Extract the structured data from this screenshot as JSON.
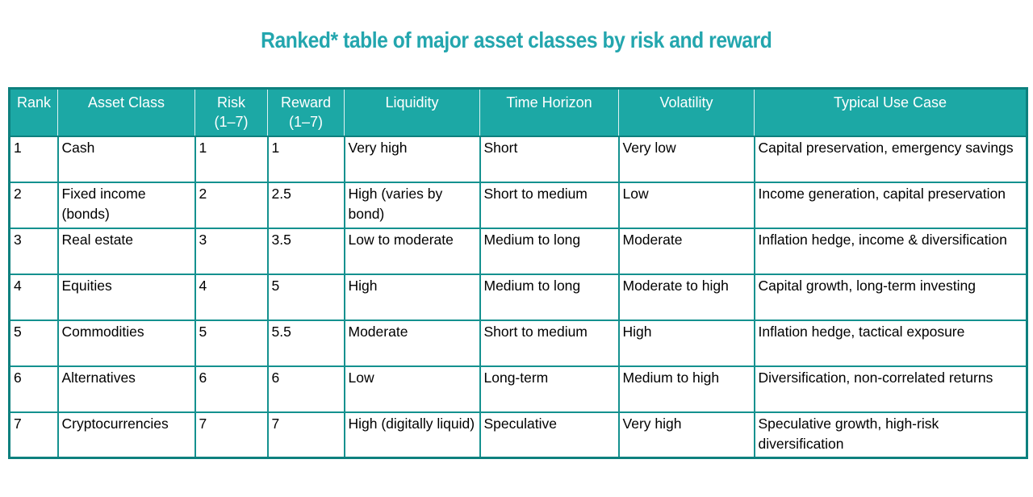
{
  "title": "Ranked* table of major asset classes by risk and reward",
  "colors": {
    "title_teal": "#23a6ae",
    "header_fill_teal": "#1ca8a5",
    "header_text": "#ffffff",
    "border_dark_teal": "#0d807e",
    "cell_border_teal": "#14918f",
    "body_text": "#000000",
    "background": "#ffffff"
  },
  "chart_data": {
    "type": "table",
    "title": "Ranked* table of major asset classes by risk and reward",
    "columns": [
      "Rank",
      "Asset Class",
      "Risk\n(1–7)",
      "Reward\n(1–7)",
      "Liquidity",
      "Time Horizon",
      "Volatility",
      "Typical Use Case"
    ],
    "rows": [
      [
        "1",
        "Cash",
        "1",
        "1",
        "Very high",
        "Short",
        "Very low",
        "Capital preservation, emergency savings"
      ],
      [
        "2",
        "Fixed income (bonds)",
        "2",
        "2.5",
        "High (varies by bond)",
        "Short to medium",
        "Low",
        "Income generation, capital preservation"
      ],
      [
        "3",
        "Real estate",
        "3",
        "3.5",
        "Low to moderate",
        "Medium to long",
        "Moderate",
        "Inflation hedge, income & diversification"
      ],
      [
        "4",
        "Equities",
        "4",
        "5",
        "High",
        "Medium to long",
        "Moderate to high",
        "Capital growth, long-term investing"
      ],
      [
        "5",
        "Commodities",
        "5",
        "5.5",
        "Moderate",
        "Short to medium",
        "High",
        "Inflation hedge, tactical exposure"
      ],
      [
        "6",
        "Alternatives",
        "6",
        "6",
        "Low",
        "Long-term",
        "Medium to high",
        "Diversification, non-correlated returns"
      ],
      [
        "7",
        "Cryptocurrencies",
        "7",
        "7",
        "High (digitally liquid)",
        "Speculative",
        "Very high",
        "Speculative growth, high-risk diversification"
      ]
    ]
  }
}
